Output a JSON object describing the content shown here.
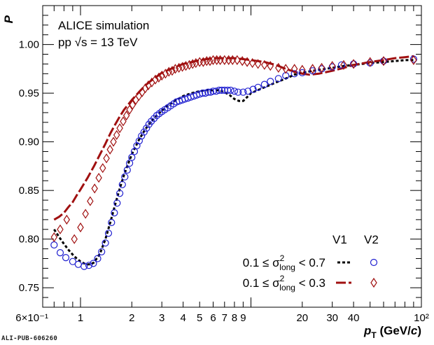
{
  "footer": {
    "tag": "ALI-PUB-606260"
  },
  "chart_data": {
    "type": "scatter",
    "title": "",
    "annotation_lines": [
      "ALICE simulation",
      "pp  √s = 13 TeV"
    ],
    "ylabel": "P",
    "xlabel": "p_T (GeV/c)",
    "xlabel_parts": {
      "p": "p",
      "sub": "T",
      "unit_pre": "(GeV/",
      "unit_c": "c",
      "unit_post": ")"
    },
    "xscale": "log",
    "xlim": [
      0.6,
      100
    ],
    "ylim": [
      0.73,
      1.04
    ],
    "x_ticks": [
      {
        "value": 0.6,
        "label": "6×10⁻¹"
      },
      {
        "value": 1,
        "label": "1"
      },
      {
        "value": 2,
        "label": "2"
      },
      {
        "value": 3,
        "label": "3"
      },
      {
        "value": 4,
        "label": "4"
      },
      {
        "value": 5,
        "label": "5"
      },
      {
        "value": 6,
        "label": "6"
      },
      {
        "value": 7,
        "label": "7"
      },
      {
        "value": 8,
        "label": "8"
      },
      {
        "value": 9,
        "label": "9"
      },
      {
        "value": 20,
        "label": "20"
      },
      {
        "value": 30,
        "label": "30"
      },
      {
        "value": 40,
        "label": "40"
      },
      {
        "value": 100,
        "label": "10²"
      }
    ],
    "y_ticks": [
      {
        "value": 0.75,
        "label": "0.75"
      },
      {
        "value": 0.8,
        "label": "0.80"
      },
      {
        "value": 0.85,
        "label": "0.85"
      },
      {
        "value": 0.9,
        "label": "0.90"
      },
      {
        "value": 0.95,
        "label": "0.95"
      },
      {
        "value": 1.0,
        "label": "1.00"
      }
    ],
    "grid": false,
    "legend": {
      "placement": "bottom-right",
      "column_headers": [
        "V1",
        "V2"
      ],
      "rows": [
        {
          "label": "0.1 ≤ σ²long < 0.7",
          "parts": {
            "pre": "0.1 ≤ σ",
            "sup": "2",
            "sub": "long",
            "post": " < 0.7"
          }
        },
        {
          "label": "0.1 ≤ σ²long < 0.3",
          "parts": {
            "pre": "0.1 ≤ σ",
            "sup": "2",
            "sub": "long",
            "post": " < 0.3"
          }
        }
      ]
    },
    "colors": {
      "blue": "#1f1fd0",
      "red": "#a01010",
      "black": "#000000"
    },
    "series": [
      {
        "name": "0.1 ≤ σ²long < 0.7 V1",
        "style": "dashed-line",
        "color": "#000000",
        "x": [
          0.7,
          0.75,
          0.8,
          0.85,
          0.9,
          0.95,
          1.0,
          1.05,
          1.1,
          1.15,
          1.2,
          1.3,
          1.4,
          1.5,
          1.6,
          1.7,
          1.8,
          1.9,
          2.0,
          2.2,
          2.4,
          2.6,
          2.8,
          3.0,
          3.25,
          3.5,
          3.75,
          4.0,
          4.5,
          5.0,
          5.5,
          6.0,
          6.5,
          7.0,
          7.5,
          8.0,
          8.5,
          9.0,
          9.5,
          10,
          12,
          14,
          16,
          18,
          20,
          25,
          30,
          35,
          40,
          50,
          60,
          70,
          80,
          90
        ],
        "y": [
          0.81,
          0.802,
          0.795,
          0.789,
          0.784,
          0.78,
          0.777,
          0.775,
          0.774,
          0.774,
          0.776,
          0.785,
          0.8,
          0.818,
          0.836,
          0.852,
          0.866,
          0.877,
          0.887,
          0.902,
          0.913,
          0.921,
          0.927,
          0.932,
          0.937,
          0.941,
          0.944,
          0.947,
          0.95,
          0.952,
          0.953,
          0.953,
          0.953,
          0.951,
          0.948,
          0.944,
          0.942,
          0.942,
          0.946,
          0.95,
          0.956,
          0.961,
          0.965,
          0.969,
          0.971,
          0.974,
          0.976,
          0.978,
          0.979,
          0.981,
          0.982,
          0.983,
          0.984,
          0.984
        ]
      },
      {
        "name": "0.1 ≤ σ²long < 0.3 V1",
        "style": "long-dashed-line",
        "color": "#a01010",
        "x": [
          0.7,
          0.75,
          0.8,
          0.85,
          0.9,
          0.95,
          1.0,
          1.1,
          1.2,
          1.3,
          1.4,
          1.5,
          1.6,
          1.7,
          1.8,
          1.9,
          2.0,
          2.2,
          2.4,
          2.6,
          2.8,
          3.0,
          3.5,
          4.0,
          4.5,
          5.0,
          6.0,
          7.0,
          8.0,
          9.0,
          10,
          12,
          14,
          16,
          18,
          20,
          22,
          25,
          30,
          35,
          40,
          50,
          60,
          70,
          80,
          90
        ],
        "y": [
          0.82,
          0.823,
          0.827,
          0.833,
          0.838,
          0.845,
          0.851,
          0.863,
          0.875,
          0.887,
          0.898,
          0.909,
          0.918,
          0.926,
          0.933,
          0.938,
          0.943,
          0.951,
          0.958,
          0.963,
          0.967,
          0.971,
          0.976,
          0.98,
          0.982,
          0.984,
          0.986,
          0.986,
          0.986,
          0.985,
          0.984,
          0.982,
          0.979,
          0.975,
          0.972,
          0.97,
          0.969,
          0.97,
          0.973,
          0.976,
          0.979,
          0.982,
          0.984,
          0.986,
          0.987,
          0.988
        ]
      },
      {
        "name": "0.1 ≤ σ²long < 0.7 V2",
        "style": "open-circle",
        "color": "#1f1fd0",
        "x": [
          0.7,
          0.76,
          0.82,
          0.9,
          0.97,
          1.05,
          1.12,
          1.19,
          1.26,
          1.33,
          1.4,
          1.46,
          1.52,
          1.58,
          1.64,
          1.7,
          1.76,
          1.82,
          1.88,
          1.94,
          2.0,
          2.07,
          2.14,
          2.21,
          2.28,
          2.36,
          2.44,
          2.52,
          2.6,
          2.7,
          2.8,
          2.9,
          3.0,
          3.12,
          3.25,
          3.38,
          3.52,
          3.66,
          3.8,
          3.95,
          4.1,
          4.27,
          4.44,
          4.62,
          4.8,
          5.0,
          5.2,
          5.4,
          5.6,
          5.8,
          6.0,
          6.25,
          6.5,
          6.75,
          7.0,
          7.3,
          7.6,
          8.0,
          8.4,
          9.0,
          9.6,
          10.3,
          11.0,
          12.0,
          13.0,
          14.5,
          16.0,
          18.0,
          20.0,
          23.0,
          26.0,
          30.0,
          34.0,
          40.0,
          50.0,
          60.0,
          90.0
        ],
        "y": [
          0.794,
          0.786,
          0.781,
          0.777,
          0.774,
          0.772,
          0.773,
          0.775,
          0.78,
          0.787,
          0.796,
          0.806,
          0.817,
          0.827,
          0.837,
          0.847,
          0.856,
          0.864,
          0.871,
          0.878,
          0.884,
          0.89,
          0.896,
          0.901,
          0.906,
          0.91,
          0.914,
          0.918,
          0.921,
          0.924,
          0.927,
          0.929,
          0.931,
          0.933,
          0.935,
          0.937,
          0.939,
          0.941,
          0.942,
          0.943,
          0.944,
          0.945,
          0.946,
          0.947,
          0.948,
          0.949,
          0.95,
          0.95,
          0.951,
          0.951,
          0.952,
          0.952,
          0.953,
          0.953,
          0.953,
          0.953,
          0.953,
          0.952,
          0.951,
          0.951,
          0.952,
          0.954,
          0.956,
          0.959,
          0.962,
          0.965,
          0.968,
          0.97,
          0.971,
          0.973,
          0.975,
          0.977,
          0.979,
          0.98,
          0.981,
          0.983,
          0.985
        ]
      },
      {
        "name": "0.1 ≤ σ²long < 0.3 V2",
        "style": "open-diamond",
        "color": "#a01010",
        "x": [
          0.7,
          0.76,
          0.83,
          0.92,
          1.0,
          1.07,
          1.14,
          1.21,
          1.28,
          1.35,
          1.42,
          1.49,
          1.56,
          1.63,
          1.7,
          1.78,
          1.86,
          1.94,
          2.02,
          2.11,
          2.2,
          2.3,
          2.4,
          2.5,
          2.62,
          2.75,
          2.88,
          3.0,
          3.15,
          3.3,
          3.45,
          3.6,
          3.78,
          3.96,
          4.15,
          4.35,
          4.55,
          4.75,
          5.0,
          5.25,
          5.5,
          5.75,
          6.0,
          6.3,
          6.6,
          7.0,
          7.4,
          7.8,
          8.3,
          8.9,
          9.5,
          10.2,
          11.0,
          12.0,
          13.0,
          14.5,
          16.0,
          18.0,
          20.0,
          23.0,
          26.0,
          30.0,
          35.0,
          40.0,
          50.0,
          60.0,
          90.0
        ],
        "y": [
          0.802,
          0.81,
          0.82,
          0.8,
          0.812,
          0.826,
          0.839,
          0.852,
          0.863,
          0.873,
          0.883,
          0.892,
          0.9,
          0.907,
          0.914,
          0.921,
          0.927,
          0.933,
          0.938,
          0.943,
          0.947,
          0.951,
          0.955,
          0.958,
          0.961,
          0.964,
          0.966,
          0.968,
          0.97,
          0.972,
          0.973,
          0.975,
          0.976,
          0.977,
          0.978,
          0.979,
          0.98,
          0.981,
          0.982,
          0.982,
          0.983,
          0.983,
          0.984,
          0.984,
          0.984,
          0.984,
          0.984,
          0.984,
          0.984,
          0.983,
          0.982,
          0.981,
          0.98,
          0.979,
          0.978,
          0.976,
          0.975,
          0.975,
          0.974,
          0.975,
          0.976,
          0.978,
          0.979,
          0.98,
          0.982,
          0.983,
          0.984
        ]
      }
    ]
  }
}
